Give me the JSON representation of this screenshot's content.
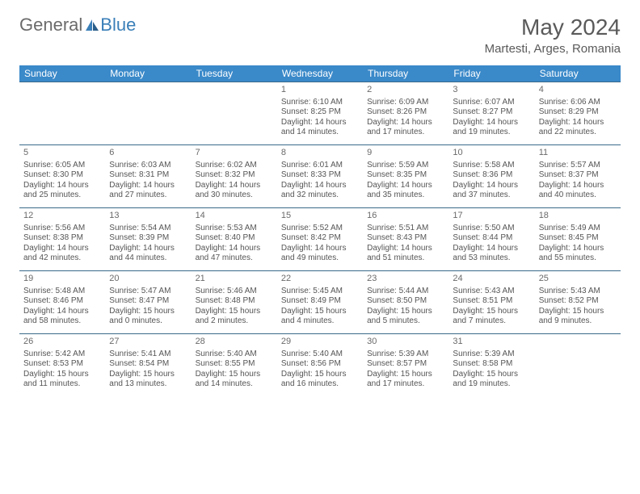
{
  "brand": {
    "part1": "General",
    "part2": "Blue"
  },
  "title": "May 2024",
  "location": "Martesti, Arges, Romania",
  "colors": {
    "header_bg": "#3a89c9",
    "header_fg": "#ffffff",
    "row_border": "#3a6a8a",
    "text": "#555555",
    "logo_gray": "#6b6b6b",
    "logo_blue": "#3a7fb8"
  },
  "day_headers": [
    "Sunday",
    "Monday",
    "Tuesday",
    "Wednesday",
    "Thursday",
    "Friday",
    "Saturday"
  ],
  "weeks": [
    [
      {
        "n": "",
        "lines": [
          "",
          "",
          "",
          ""
        ]
      },
      {
        "n": "",
        "lines": [
          "",
          "",
          "",
          ""
        ]
      },
      {
        "n": "",
        "lines": [
          "",
          "",
          "",
          ""
        ]
      },
      {
        "n": "1",
        "lines": [
          "Sunrise: 6:10 AM",
          "Sunset: 8:25 PM",
          "Daylight: 14 hours",
          "and 14 minutes."
        ]
      },
      {
        "n": "2",
        "lines": [
          "Sunrise: 6:09 AM",
          "Sunset: 8:26 PM",
          "Daylight: 14 hours",
          "and 17 minutes."
        ]
      },
      {
        "n": "3",
        "lines": [
          "Sunrise: 6:07 AM",
          "Sunset: 8:27 PM",
          "Daylight: 14 hours",
          "and 19 minutes."
        ]
      },
      {
        "n": "4",
        "lines": [
          "Sunrise: 6:06 AM",
          "Sunset: 8:29 PM",
          "Daylight: 14 hours",
          "and 22 minutes."
        ]
      }
    ],
    [
      {
        "n": "5",
        "lines": [
          "Sunrise: 6:05 AM",
          "Sunset: 8:30 PM",
          "Daylight: 14 hours",
          "and 25 minutes."
        ]
      },
      {
        "n": "6",
        "lines": [
          "Sunrise: 6:03 AM",
          "Sunset: 8:31 PM",
          "Daylight: 14 hours",
          "and 27 minutes."
        ]
      },
      {
        "n": "7",
        "lines": [
          "Sunrise: 6:02 AM",
          "Sunset: 8:32 PM",
          "Daylight: 14 hours",
          "and 30 minutes."
        ]
      },
      {
        "n": "8",
        "lines": [
          "Sunrise: 6:01 AM",
          "Sunset: 8:33 PM",
          "Daylight: 14 hours",
          "and 32 minutes."
        ]
      },
      {
        "n": "9",
        "lines": [
          "Sunrise: 5:59 AM",
          "Sunset: 8:35 PM",
          "Daylight: 14 hours",
          "and 35 minutes."
        ]
      },
      {
        "n": "10",
        "lines": [
          "Sunrise: 5:58 AM",
          "Sunset: 8:36 PM",
          "Daylight: 14 hours",
          "and 37 minutes."
        ]
      },
      {
        "n": "11",
        "lines": [
          "Sunrise: 5:57 AM",
          "Sunset: 8:37 PM",
          "Daylight: 14 hours",
          "and 40 minutes."
        ]
      }
    ],
    [
      {
        "n": "12",
        "lines": [
          "Sunrise: 5:56 AM",
          "Sunset: 8:38 PM",
          "Daylight: 14 hours",
          "and 42 minutes."
        ]
      },
      {
        "n": "13",
        "lines": [
          "Sunrise: 5:54 AM",
          "Sunset: 8:39 PM",
          "Daylight: 14 hours",
          "and 44 minutes."
        ]
      },
      {
        "n": "14",
        "lines": [
          "Sunrise: 5:53 AM",
          "Sunset: 8:40 PM",
          "Daylight: 14 hours",
          "and 47 minutes."
        ]
      },
      {
        "n": "15",
        "lines": [
          "Sunrise: 5:52 AM",
          "Sunset: 8:42 PM",
          "Daylight: 14 hours",
          "and 49 minutes."
        ]
      },
      {
        "n": "16",
        "lines": [
          "Sunrise: 5:51 AM",
          "Sunset: 8:43 PM",
          "Daylight: 14 hours",
          "and 51 minutes."
        ]
      },
      {
        "n": "17",
        "lines": [
          "Sunrise: 5:50 AM",
          "Sunset: 8:44 PM",
          "Daylight: 14 hours",
          "and 53 minutes."
        ]
      },
      {
        "n": "18",
        "lines": [
          "Sunrise: 5:49 AM",
          "Sunset: 8:45 PM",
          "Daylight: 14 hours",
          "and 55 minutes."
        ]
      }
    ],
    [
      {
        "n": "19",
        "lines": [
          "Sunrise: 5:48 AM",
          "Sunset: 8:46 PM",
          "Daylight: 14 hours",
          "and 58 minutes."
        ]
      },
      {
        "n": "20",
        "lines": [
          "Sunrise: 5:47 AM",
          "Sunset: 8:47 PM",
          "Daylight: 15 hours",
          "and 0 minutes."
        ]
      },
      {
        "n": "21",
        "lines": [
          "Sunrise: 5:46 AM",
          "Sunset: 8:48 PM",
          "Daylight: 15 hours",
          "and 2 minutes."
        ]
      },
      {
        "n": "22",
        "lines": [
          "Sunrise: 5:45 AM",
          "Sunset: 8:49 PM",
          "Daylight: 15 hours",
          "and 4 minutes."
        ]
      },
      {
        "n": "23",
        "lines": [
          "Sunrise: 5:44 AM",
          "Sunset: 8:50 PM",
          "Daylight: 15 hours",
          "and 5 minutes."
        ]
      },
      {
        "n": "24",
        "lines": [
          "Sunrise: 5:43 AM",
          "Sunset: 8:51 PM",
          "Daylight: 15 hours",
          "and 7 minutes."
        ]
      },
      {
        "n": "25",
        "lines": [
          "Sunrise: 5:43 AM",
          "Sunset: 8:52 PM",
          "Daylight: 15 hours",
          "and 9 minutes."
        ]
      }
    ],
    [
      {
        "n": "26",
        "lines": [
          "Sunrise: 5:42 AM",
          "Sunset: 8:53 PM",
          "Daylight: 15 hours",
          "and 11 minutes."
        ]
      },
      {
        "n": "27",
        "lines": [
          "Sunrise: 5:41 AM",
          "Sunset: 8:54 PM",
          "Daylight: 15 hours",
          "and 13 minutes."
        ]
      },
      {
        "n": "28",
        "lines": [
          "Sunrise: 5:40 AM",
          "Sunset: 8:55 PM",
          "Daylight: 15 hours",
          "and 14 minutes."
        ]
      },
      {
        "n": "29",
        "lines": [
          "Sunrise: 5:40 AM",
          "Sunset: 8:56 PM",
          "Daylight: 15 hours",
          "and 16 minutes."
        ]
      },
      {
        "n": "30",
        "lines": [
          "Sunrise: 5:39 AM",
          "Sunset: 8:57 PM",
          "Daylight: 15 hours",
          "and 17 minutes."
        ]
      },
      {
        "n": "31",
        "lines": [
          "Sunrise: 5:39 AM",
          "Sunset: 8:58 PM",
          "Daylight: 15 hours",
          "and 19 minutes."
        ]
      },
      {
        "n": "",
        "lines": [
          "",
          "",
          "",
          ""
        ]
      }
    ]
  ]
}
